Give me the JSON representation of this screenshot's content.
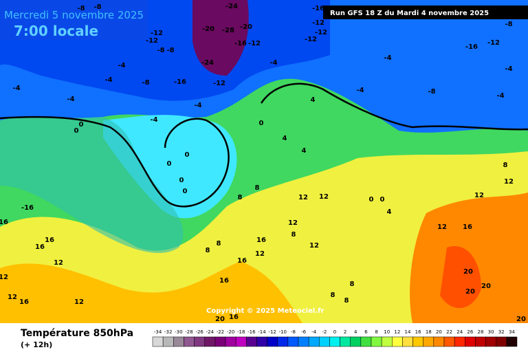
{
  "header": {
    "date": "Mercredi 5 novembre 2025",
    "time": "7:00 locale",
    "run": "Run GFS 18 Z du Mardi 4 novembre 2025"
  },
  "copyright": "Copyright © 2025 Meteociel.fr",
  "footer": {
    "title": "Température 850hPa",
    "subtitle": "(+ 12h)"
  },
  "scale": {
    "labels": [
      -34,
      -32,
      -30,
      -28,
      -26,
      -24,
      -22,
      -20,
      -18,
      -16,
      -14,
      -12,
      -10,
      -8,
      -6,
      -4,
      -2,
      0,
      2,
      4,
      6,
      8,
      10,
      12,
      14,
      16,
      18,
      20,
      22,
      24,
      26,
      28,
      30,
      32,
      34
    ],
    "colors": [
      "#d8d8d8",
      "#b8b8b8",
      "#988898",
      "#905890",
      "#803880",
      "#701868",
      "#7a0078",
      "#a000a0",
      "#c000c0",
      "#5a0090",
      "#3000a8",
      "#0000c8",
      "#0028e8",
      "#0058ff",
      "#0080ff",
      "#00a8ff",
      "#00d0ff",
      "#00f0f0",
      "#00e8a0",
      "#00d060",
      "#40e040",
      "#80f840",
      "#c0ff40",
      "#ffff40",
      "#ffe040",
      "#ffc800",
      "#ffa800",
      "#ff8800",
      "#ff5800",
      "#ff2800",
      "#e00000",
      "#c00000",
      "#a00000",
      "#800000",
      "#200000"
    ]
  },
  "contour_labels": [
    -8,
    -8,
    -12,
    -12,
    -8,
    -8,
    -20,
    -28,
    -20,
    -24,
    -16,
    -12,
    -24,
    -12,
    -16,
    -8,
    -4,
    -4,
    -4,
    -4,
    -4,
    -4,
    -4,
    -16,
    -12,
    -12,
    -12,
    -16,
    -12,
    -8,
    -4,
    -4,
    -4,
    -8,
    -4,
    0,
    0,
    0,
    0,
    0,
    0,
    0,
    4,
    4,
    4,
    8,
    8,
    12,
    12,
    12,
    12,
    16,
    8,
    8,
    16,
    12,
    16,
    8,
    0,
    0,
    4,
    12,
    16,
    12,
    12,
    8,
    20,
    20,
    20,
    8,
    8,
    8,
    12,
    16,
    12,
    12,
    16,
    -16,
    16,
    16,
    12,
    20,
    16,
    20
  ]
}
